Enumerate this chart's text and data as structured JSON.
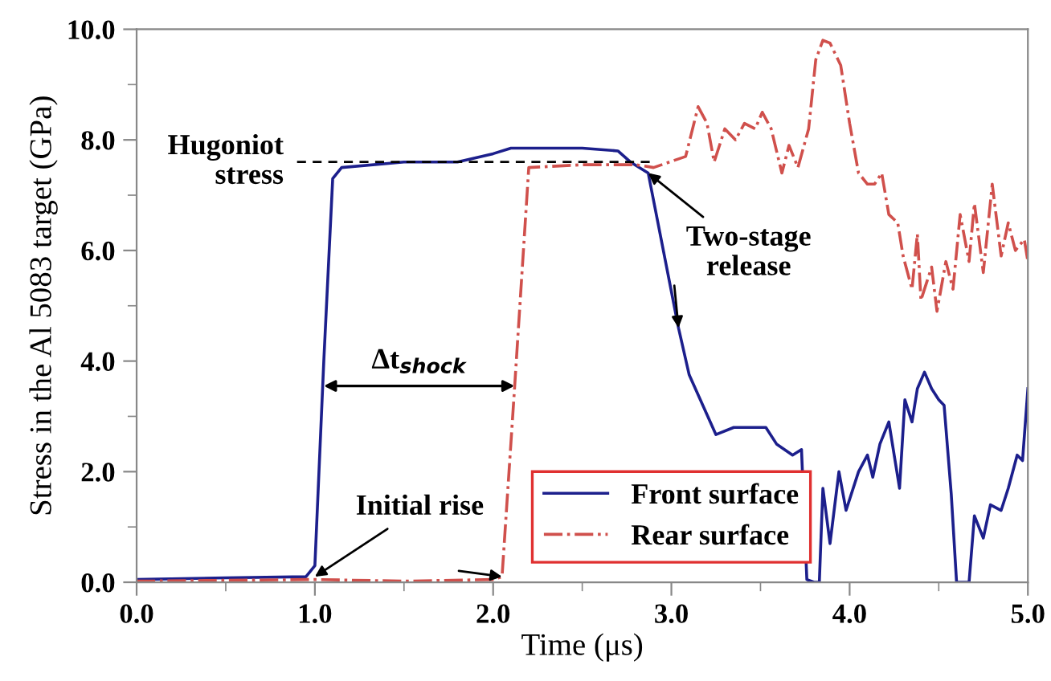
{
  "chart_data": {
    "type": "line",
    "xlabel": "Time (μs)",
    "ylabel": "Stress in the Al 5083 target (GPa)",
    "xlim": [
      0,
      5
    ],
    "xticks": [
      {
        "value": 0,
        "label": "0.0"
      },
      {
        "value": 1,
        "label": "1.0"
      },
      {
        "value": 2,
        "label": "2.0"
      },
      {
        "value": 3,
        "label": "3.0"
      },
      {
        "value": 4,
        "label": "4.0"
      },
      {
        "value": 5,
        "label": "5.0"
      }
    ],
    "ylim": [
      0,
      10
    ],
    "yticks": [
      {
        "value": 0,
        "label": "0.0"
      },
      {
        "value": 2,
        "label": "2.0"
      },
      {
        "value": 4,
        "label": "4.0"
      },
      {
        "value": 6,
        "label": "6.0"
      },
      {
        "value": 8,
        "label": "8.0"
      },
      {
        "value": 10,
        "label": "10.0"
      }
    ],
    "grid": false,
    "legend": "bottom",
    "marker": "none",
    "series": [
      {
        "name": "Front surface",
        "color": "#1c1f8c",
        "line_style": "solid",
        "x": [
          0,
          0.5,
          0.95,
          1.0,
          1.05,
          1.1,
          1.15,
          1.5,
          1.8,
          2.0,
          2.1,
          2.5,
          2.7,
          2.77,
          2.87,
          3.04,
          3.1,
          3.25,
          3.35,
          3.53,
          3.59,
          3.68,
          3.73,
          3.76,
          3.8,
          3.83,
          3.85,
          3.89,
          3.94,
          3.98,
          4.05,
          4.1,
          4.13,
          4.17,
          4.22,
          4.28,
          4.31,
          4.35,
          4.38,
          4.42,
          4.46,
          4.5,
          4.53,
          4.57,
          4.6,
          4.67,
          4.7,
          4.75,
          4.79,
          4.85,
          4.89,
          4.94,
          4.97,
          5.0
        ],
        "values": [
          0.05,
          0.08,
          0.1,
          0.3,
          4.0,
          7.3,
          7.5,
          7.6,
          7.6,
          7.75,
          7.85,
          7.85,
          7.8,
          7.6,
          7.4,
          4.6,
          3.75,
          2.67,
          2.8,
          2.8,
          2.5,
          2.3,
          2.4,
          0.05,
          0.0,
          0.0,
          1.7,
          0.7,
          2.0,
          1.3,
          2.0,
          2.3,
          1.9,
          2.5,
          2.9,
          1.7,
          3.3,
          2.9,
          3.5,
          3.8,
          3.5,
          3.3,
          3.2,
          1.6,
          0.0,
          0.0,
          1.2,
          0.8,
          1.4,
          1.3,
          1.7,
          2.3,
          2.2,
          3.5
        ]
      },
      {
        "name": "Rear surface",
        "color": "#d0504c",
        "line_style": "dashdot",
        "x": [
          0,
          1.0,
          1.5,
          2.0,
          2.05,
          2.12,
          2.2,
          2.5,
          2.8,
          2.9,
          2.99,
          3.08,
          3.15,
          3.2,
          3.24,
          3.3,
          3.36,
          3.41,
          3.47,
          3.51,
          3.56,
          3.62,
          3.66,
          3.71,
          3.77,
          3.81,
          3.85,
          3.89,
          3.95,
          4.0,
          4.05,
          4.1,
          4.14,
          4.18,
          4.22,
          4.27,
          4.3,
          4.35,
          4.38,
          4.4,
          4.46,
          4.49,
          4.54,
          4.58,
          4.62,
          4.67,
          4.7,
          4.75,
          4.8,
          4.85,
          4.89,
          4.93,
          4.98,
          5.0
        ],
        "values": [
          0.02,
          0.05,
          0.02,
          0.05,
          0.1,
          3.5,
          7.5,
          7.55,
          7.55,
          7.5,
          7.6,
          7.7,
          8.6,
          8.3,
          7.6,
          8.2,
          8.0,
          8.3,
          8.2,
          8.5,
          8.2,
          7.4,
          7.9,
          7.5,
          8.2,
          9.45,
          9.8,
          9.75,
          9.35,
          8.3,
          7.4,
          7.2,
          7.2,
          7.4,
          6.65,
          6.5,
          5.9,
          5.3,
          6.3,
          5.1,
          5.7,
          4.9,
          5.8,
          5.3,
          6.65,
          5.8,
          6.85,
          5.6,
          7.2,
          5.9,
          6.5,
          6.0,
          6.2,
          5.8
        ]
      },
      {
        "color": "#000000",
        "line_style": "dashed",
        "x": [
          0.9,
          2.9
        ],
        "values": [
          7.6,
          7.6
        ]
      }
    ],
    "annotations": [
      {
        "text": "Hugoniot\nstress",
        "x": 0.9,
        "y": 7.6
      },
      {
        "text": "Two-stage\nrelease",
        "x": 2.87,
        "y": 7.4
      },
      {
        "text": "Δt$_{shock}$",
        "x": 1.05,
        "y": 3.55
      },
      {
        "text": "Initial rise",
        "x": 1.0,
        "y": 0.1
      }
    ]
  }
}
